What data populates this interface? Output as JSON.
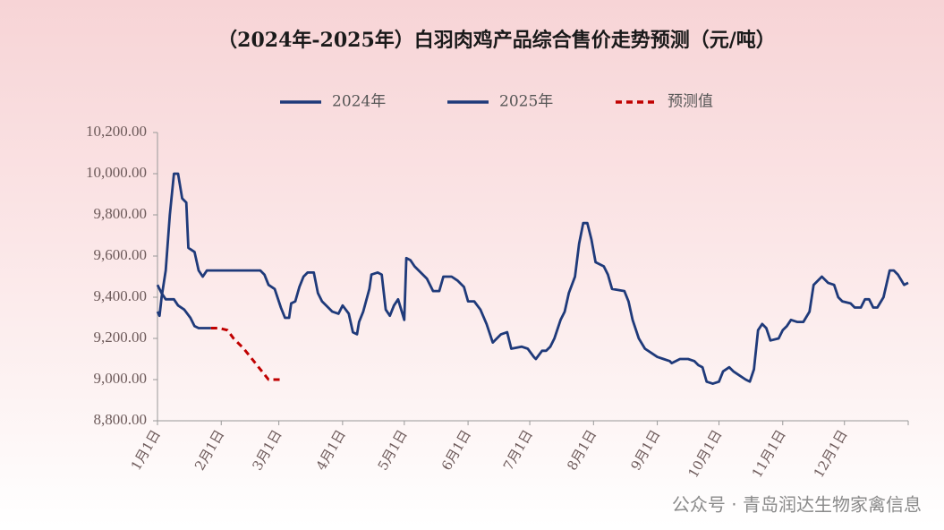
{
  "chart_data": {
    "type": "line",
    "title": "（2024年-2025年）白羽肉鸡产品综合售价走势预测（元/吨）",
    "watermark": "公众号 · 青岛润达生物家禽信息",
    "xlim": [
      0,
      365
    ],
    "xticks": [
      {
        "value": 0,
        "label": "1月1日"
      },
      {
        "value": 31,
        "label": "2月1日"
      },
      {
        "value": 59,
        "label": "3月1日"
      },
      {
        "value": 90,
        "label": "4月1日"
      },
      {
        "value": 120,
        "label": "5月1日"
      },
      {
        "value": 151,
        "label": "6月1日"
      },
      {
        "value": 181,
        "label": "7月1日"
      },
      {
        "value": 212,
        "label": "8月1日"
      },
      {
        "value": 243,
        "label": "9月1日"
      },
      {
        "value": 273,
        "label": "10月1日"
      },
      {
        "value": 304,
        "label": "11月1日"
      },
      {
        "value": 334,
        "label": "12月1日"
      }
    ],
    "ylim": [
      8800,
      10200
    ],
    "yticks": [
      {
        "value": 8800,
        "label": "8,800.00"
      },
      {
        "value": 9000,
        "label": "9,000.00"
      },
      {
        "value": 9200,
        "label": "9,200.00"
      },
      {
        "value": 9400,
        "label": "9,400.00"
      },
      {
        "value": 9600,
        "label": "9,600.00"
      },
      {
        "value": 9800,
        "label": "9,800.00"
      },
      {
        "value": 10000,
        "label": "10,000.00"
      },
      {
        "value": 10200,
        "label": "10,200.00"
      }
    ],
    "series": [
      {
        "name": "2024年",
        "color": "#1f3a7a",
        "dash": false,
        "x": [
          0,
          1,
          2,
          4,
          6,
          8,
          10,
          12,
          14,
          15,
          18,
          20,
          22,
          24,
          50,
          52,
          54,
          57,
          60,
          62,
          64,
          65,
          67,
          69,
          71,
          73,
          76,
          78,
          80,
          83,
          85,
          88,
          90,
          93,
          95,
          97,
          98,
          100,
          103,
          104,
          107,
          109,
          111,
          113,
          115,
          117,
          120,
          121,
          123,
          125,
          128,
          131,
          134,
          137,
          139,
          143,
          146,
          149,
          151,
          154,
          157,
          160,
          163,
          165,
          167,
          170,
          172,
          177,
          180,
          183,
          184,
          187,
          189,
          191,
          193,
          196,
          198,
          200,
          203,
          205,
          207,
          209,
          211,
          213,
          217,
          219,
          221,
          227,
          229,
          231,
          234,
          237,
          240,
          243,
          246,
          249,
          250,
          254,
          258,
          261,
          263,
          265,
          267,
          270,
          273,
          275,
          278,
          280,
          283,
          286,
          288,
          290,
          292,
          294,
          296,
          298,
          302,
          304,
          306,
          308,
          311,
          314,
          317,
          319,
          321,
          323,
          326,
          329,
          331,
          333,
          337,
          339,
          342,
          344,
          346,
          348,
          350,
          353,
          356,
          358,
          360,
          363,
          365
        ],
        "values": [
          9330,
          9310,
          9400,
          9530,
          9800,
          10000,
          10000,
          9880,
          9860,
          9640,
          9620,
          9530,
          9500,
          9530,
          9530,
          9510,
          9460,
          9440,
          9350,
          9300,
          9300,
          9370,
          9380,
          9450,
          9500,
          9520,
          9520,
          9420,
          9380,
          9350,
          9330,
          9320,
          9360,
          9320,
          9230,
          9220,
          9280,
          9330,
          9440,
          9510,
          9520,
          9510,
          9340,
          9310,
          9360,
          9390,
          9290,
          9590,
          9580,
          9550,
          9520,
          9490,
          9430,
          9430,
          9500,
          9500,
          9480,
          9450,
          9380,
          9380,
          9340,
          9270,
          9180,
          9200,
          9220,
          9230,
          9150,
          9160,
          9150,
          9110,
          9100,
          9140,
          9140,
          9160,
          9200,
          9290,
          9330,
          9420,
          9500,
          9660,
          9760,
          9760,
          9680,
          9570,
          9550,
          9510,
          9440,
          9430,
          9380,
          9290,
          9200,
          9150,
          9130,
          9110,
          9100,
          9090,
          9080,
          9100,
          9100,
          9090,
          9070,
          9060,
          8990,
          8980,
          8990,
          9040,
          9060,
          9040,
          9020,
          9000,
          8990,
          9050,
          9240,
          9270,
          9250,
          9190,
          9200,
          9240,
          9260,
          9290,
          9280,
          9280,
          9330,
          9460,
          9480,
          9500,
          9470,
          9460,
          9400,
          9380,
          9370,
          9350,
          9350,
          9390,
          9390,
          9350,
          9350,
          9400,
          9530,
          9530,
          9510,
          9460,
          9470
        ]
      },
      {
        "name": "2025年",
        "color": "#1f3a7a",
        "dash": false,
        "x": [
          0,
          2,
          4,
          8,
          10,
          13,
          16,
          18,
          20,
          26
        ],
        "values": [
          9460,
          9420,
          9390,
          9390,
          9360,
          9340,
          9300,
          9260,
          9250,
          9250
        ]
      },
      {
        "name": "预测值",
        "color": "#c00000",
        "dash": true,
        "x": [
          26,
          30,
          34,
          37,
          42,
          46,
          50,
          54,
          60
        ],
        "values": [
          9250,
          9250,
          9240,
          9200,
          9150,
          9100,
          9050,
          9000,
          9000
        ]
      }
    ]
  }
}
